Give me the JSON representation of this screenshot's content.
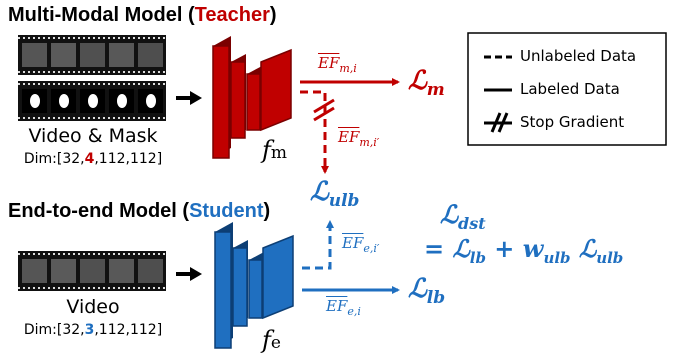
{
  "teacher": {
    "title_main": "Multi-Modal Model (",
    "title_role": "Teacher",
    "title_close": ")",
    "input_caption": "Video & Mask",
    "dim_prefix": "Dim:[32,",
    "dim_channels": "4",
    "dim_suffix": ",112,112]",
    "model_label": "f",
    "model_sub": "m",
    "pred_label": "EF",
    "pred_sub": "m,i",
    "pred_prime_label": "EF",
    "pred_prime_sub": "m,i′",
    "loss_L": "ℒ",
    "loss_sub": "m"
  },
  "student": {
    "title_main": "End-to-end Model (",
    "title_role": "Student",
    "title_close": ")",
    "input_caption": "Video",
    "dim_prefix": "Dim:[32,",
    "dim_channels": "3",
    "dim_suffix": ",112,112]",
    "model_label": "f",
    "model_sub": "e",
    "pred_label": "EF",
    "pred_sub": "e,i",
    "pred_prime_label": "EF",
    "pred_prime_sub": "e,i′",
    "loss_L": "ℒ",
    "loss_sub": "lb"
  },
  "ulb_loss": {
    "L": "ℒ",
    "sub": "ulb"
  },
  "distill": {
    "L": "ℒ",
    "sub": "dst",
    "eq": "= ",
    "t1_L": "ℒ",
    "t1_sub": "lb",
    "plus": " + ",
    "w": "w",
    "w_sub": "ulb",
    "t2_L": "ℒ",
    "t2_sub": "ulb"
  },
  "legend": {
    "unlabeled": "Unlabeled Data",
    "labeled": "Labeled Data",
    "stop_gradient": "Stop Gradient"
  },
  "colors": {
    "teacher_red": "#c00000",
    "teacher_dark": "#7a0000",
    "student_blue": "#1f6fc0",
    "student_dark": "#0d3f75",
    "arrow_black": "#000000"
  }
}
